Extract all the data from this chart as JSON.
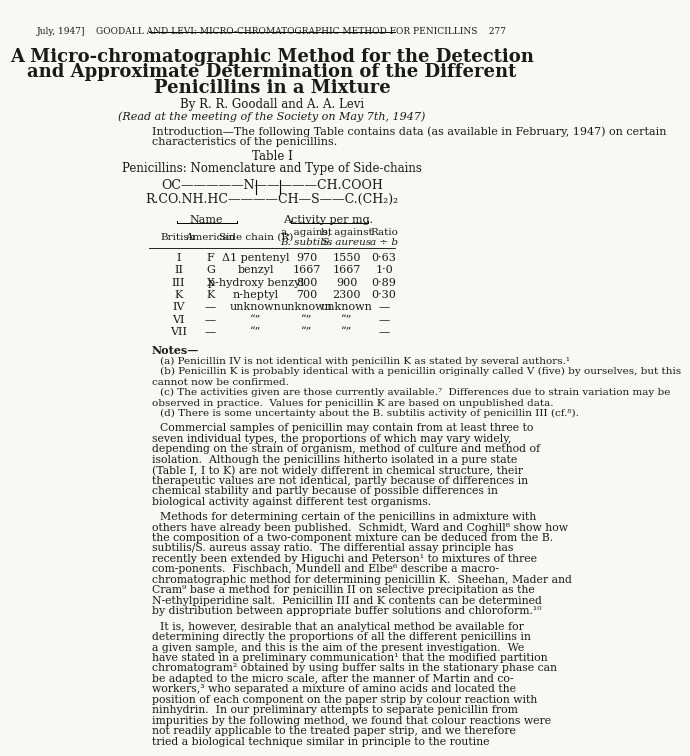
{
  "page_header": "July, 1947]    GOODALL AND LEVI: MICRO-CHROMATOGRAPHIC METHOD FOR PENICILLINS    277",
  "title_line1": "A Micro-chromatographic Method for the Detection",
  "title_line2": "and Approximate Determination of the Different",
  "title_line3": "Penicillins in a Mixture",
  "authors": "By R. R. Goodall and A. A. Levi",
  "meeting_note": "(Read at the meeting of the Society on May 7th, 1947)",
  "intro_text": "Introduction—The following Table contains data (as available in February, 1947) on certain\ncharacteristics of the penicillins.",
  "table_label": "Table I",
  "table_title": "Penicillins: Nomenclature and Type of Side-chains",
  "structural_formula_line1": "OC————N————CH.COOH",
  "structural_formula_line2": "R.CO.NH.HC————CH—S——C.(CH₂)₂",
  "col_headers": [
    "",
    "",
    "",
    "Activity per mg.",
    "",
    ""
  ],
  "col_sub_headers": [
    "British",
    "American",
    "Side chain (R)",
    "a, against\nB. subtilis",
    "b, against\nS. aureus",
    "Ratio\na ÷ b"
  ],
  "table_data": [
    [
      "I",
      "F",
      "Δ1 pentenyl",
      "970",
      "1550",
      "0·63"
    ],
    [
      "II",
      "G",
      "benzyl",
      "1667",
      "1667",
      "1·0"
    ],
    [
      "III",
      "X",
      "p-hydroxy benzyl",
      "800",
      "900",
      "0·89"
    ],
    [
      "K",
      "K",
      "n-heptyl",
      "700",
      "2300",
      "0·30"
    ],
    [
      "IV",
      "—",
      "unknown",
      "unknown",
      "unknown",
      "—"
    ],
    [
      "VI",
      "—",
      "“”",
      "“”",
      "“”",
      "—"
    ],
    [
      "VII",
      "—",
      "“”",
      "“”",
      "“”",
      "—"
    ]
  ],
  "notes_header": "Notes—",
  "notes": [
    "(a) Penicillin IV is not identical with penicillin K as stated by several authors.¹",
    "(b) Penicillin K is probably identical with a penicillin originally called V (five) by ourselves, but this\ncannot now be confirmed.",
    "(c) The activities given are those currently available.⁷  Differences due to strain variation may be\nobserved in practice.  Values for penicillin K are based on unpublished data.",
    "(d) There is some uncertainty about the B. subtilis activity of penicillin III (cf.⁸)."
  ],
  "para1": "Commercial samples of penicillin may contain from at least three to seven individual types, the proportions of which may vary widely, depending on the strain of organism, method of culture and method of isolation.  Although the penicillins hitherto isolated in a pure state (Table I, I to K) are not widely different in chemical structure, their therapeutic values are not identical, partly because of differences in chemical stability and partly because of possible differences in biological activity against different test organisms.",
  "para2": "Methods for determining certain of the penicillins in admixture with others have already been published.  Schmidt, Ward and Coghill⁸ show how the composition of a two-component mixture can be deduced from the B. subtilis/S. aureus assay ratio.  The differential assay principle has recently been extended by Higuchi and Peterson¹ to mixtures of three com-ponents.  Fischbach, Mundell and Elbe⁶ describe a macro-chromatographic method for determining penicillin K.  Sheehan, Mader and Cram⁹ base a method for penicillin II on selective precipitation as the N-ethylpiperidine salt.  Penicillin III and K contents can be determined by distribution between appropriate buffer solutions and chloroform.¹⁰",
  "para3": "It is, however, desirable that an analytical method be available for determining directly the proportions of all the different penicillins in a given sample, and this is the aim of the present investigation.  We have stated in a preliminary communication¹ that the modified partition chromatogram² obtained by using buffer salts in the stationary phase can be adapted to the micro scale, after the manner of Martin and co-workers,³ who separated a mixture of amino acids and located the position of each component on the paper strip by colour reaction with ninhydrin.  In our preliminary attempts to separate penicillin from impurities by the following method, we found that colour reactions were not readily applicable to the treated paper strip, and we therefore tried a biological technique similar in principle to the routine",
  "bg_color": "#f5f5f0",
  "text_color": "#1a1a1a"
}
